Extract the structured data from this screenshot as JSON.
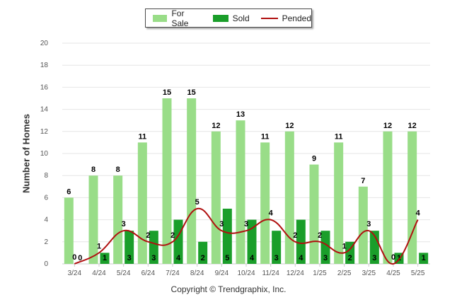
{
  "chart_data": {
    "type": "bar",
    "categories": [
      "3/24",
      "4/24",
      "5/24",
      "6/24",
      "7/24",
      "8/24",
      "9/24",
      "10/24",
      "11/24",
      "12/24",
      "1/25",
      "2/25",
      "3/25",
      "4/25",
      "5/25"
    ],
    "series": [
      {
        "name": "For Sale",
        "type": "bar",
        "color": "#99dd88",
        "values": [
          6,
          8,
          8,
          11,
          15,
          15,
          12,
          13,
          11,
          12,
          9,
          11,
          7,
          12,
          12
        ]
      },
      {
        "name": "Sold",
        "type": "bar",
        "color": "#1a9e2a",
        "values": [
          0,
          1,
          3,
          3,
          4,
          2,
          5,
          4,
          3,
          4,
          3,
          2,
          3,
          1,
          1
        ]
      },
      {
        "name": "Pended",
        "type": "line",
        "color": "#b01010",
        "values": [
          0,
          1,
          3,
          2,
          2,
          5,
          3,
          3,
          4,
          2,
          2,
          1,
          3,
          0,
          4
        ]
      }
    ],
    "ylabel": "Number of Homes",
    "ylim": [
      0,
      20
    ],
    "yticks": [
      0,
      2,
      4,
      6,
      8,
      10,
      12,
      14,
      16,
      18,
      20
    ],
    "grid": true,
    "legend": "top-center"
  },
  "legend": {
    "for_sale": "For Sale",
    "sold": "Sold",
    "pended": "Pended"
  },
  "footer": {
    "copyright": "Copyright © Trendgraphix, Inc."
  }
}
